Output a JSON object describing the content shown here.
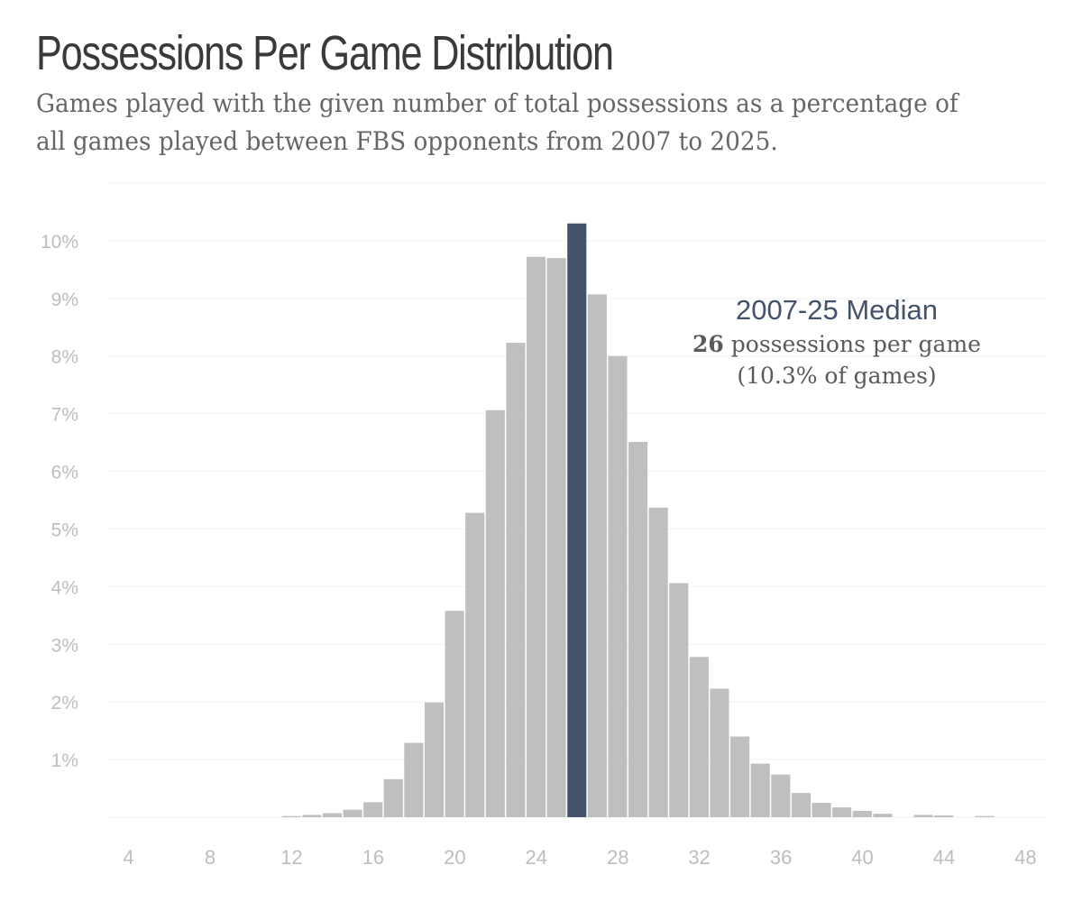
{
  "chart_data": {
    "type": "bar",
    "title": "Possessions Per Game Distribution",
    "subtitle": "Games played with the given number of total possessions as a percentage of all games played between FBS opponents from 2007 to 2025.",
    "xlabel": "",
    "ylabel": "",
    "x_ticks": [
      "4",
      "8",
      "12",
      "16",
      "20",
      "24",
      "28",
      "32",
      "36",
      "40",
      "44",
      "48"
    ],
    "y_ticks": [
      "1%",
      "2%",
      "3%",
      "4%",
      "5%",
      "6%",
      "7%",
      "8%",
      "9%",
      "10%"
    ],
    "xlim": [
      3,
      49
    ],
    "ylim": [
      0,
      11
    ],
    "x": [
      12,
      13,
      14,
      15,
      16,
      17,
      18,
      19,
      20,
      21,
      22,
      23,
      24,
      25,
      26,
      27,
      28,
      29,
      30,
      31,
      32,
      33,
      34,
      35,
      36,
      37,
      38,
      39,
      40,
      41,
      43,
      44,
      46
    ],
    "values": [
      0.02,
      0.04,
      0.07,
      0.13,
      0.26,
      0.66,
      1.29,
      1.99,
      3.58,
      5.28,
      7.06,
      8.23,
      9.72,
      9.7,
      10.3,
      9.07,
      8.0,
      6.51,
      5.37,
      4.06,
      2.78,
      2.23,
      1.4,
      0.93,
      0.74,
      0.42,
      0.25,
      0.17,
      0.11,
      0.06,
      0.04,
      0.03,
      0.02
    ],
    "highlight_x": 26,
    "colors": {
      "bar": "#bfbfbf",
      "highlight": "#44536b",
      "tick": "#bdbdbd"
    },
    "annotation": {
      "title": "2007-25 Median",
      "value": "26",
      "value_suffix": "possessions per game",
      "share": "(10.3% of games)"
    }
  }
}
